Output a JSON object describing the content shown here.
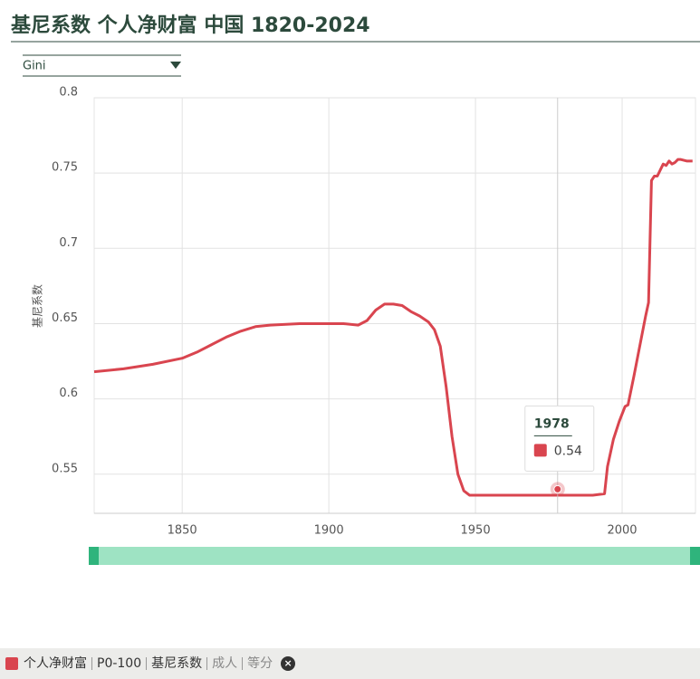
{
  "chart_data": {
    "type": "line",
    "title": "基尼系数 个人净财富 中国 1820-2024",
    "y_label": "基尼系数",
    "x": [
      1820,
      1830,
      1840,
      1850,
      1855,
      1860,
      1865,
      1870,
      1875,
      1880,
      1890,
      1900,
      1905,
      1910,
      1913,
      1916,
      1919,
      1922,
      1925,
      1928,
      1931,
      1934,
      1936,
      1938,
      1940,
      1942,
      1944,
      1946,
      1948,
      1950,
      1960,
      1970,
      1978,
      1985,
      1990,
      1994,
      1995,
      1997,
      1999,
      2001,
      2002,
      2004,
      2006,
      2008,
      2009,
      2010,
      2011,
      2012,
      2013,
      2014,
      2015,
      2016,
      2017,
      2018,
      2019,
      2020,
      2022,
      2024
    ],
    "series": [
      {
        "name": "个人净财富",
        "color": "#d9454f",
        "values": [
          0.618,
          0.62,
          0.623,
          0.627,
          0.631,
          0.636,
          0.641,
          0.645,
          0.648,
          0.649,
          0.65,
          0.65,
          0.65,
          0.649,
          0.652,
          0.659,
          0.663,
          0.663,
          0.662,
          0.658,
          0.655,
          0.651,
          0.646,
          0.635,
          0.608,
          0.575,
          0.55,
          0.539,
          0.536,
          0.536,
          0.536,
          0.536,
          0.536,
          0.536,
          0.536,
          0.537,
          0.555,
          0.573,
          0.585,
          0.595,
          0.596,
          0.615,
          0.635,
          0.655,
          0.664,
          0.745,
          0.748,
          0.748,
          0.752,
          0.756,
          0.755,
          0.758,
          0.756,
          0.757,
          0.759,
          0.759,
          0.758,
          0.758
        ]
      }
    ],
    "xlim": [
      1820,
      2025
    ],
    "ylim": [
      0.524,
      0.8
    ],
    "xticks": [
      1850,
      1900,
      1950,
      2000
    ],
    "yticks": [
      0.55,
      0.6,
      0.65,
      0.7,
      0.75,
      0.8
    ],
    "grid": true,
    "tooltip": {
      "x": 1978,
      "value": 0.54
    }
  },
  "controls": {
    "dropdown": "Gini"
  },
  "footer": {
    "parts": [
      "个人净财富",
      "P0-100",
      "基尼系数",
      "成人",
      "等分"
    ]
  }
}
